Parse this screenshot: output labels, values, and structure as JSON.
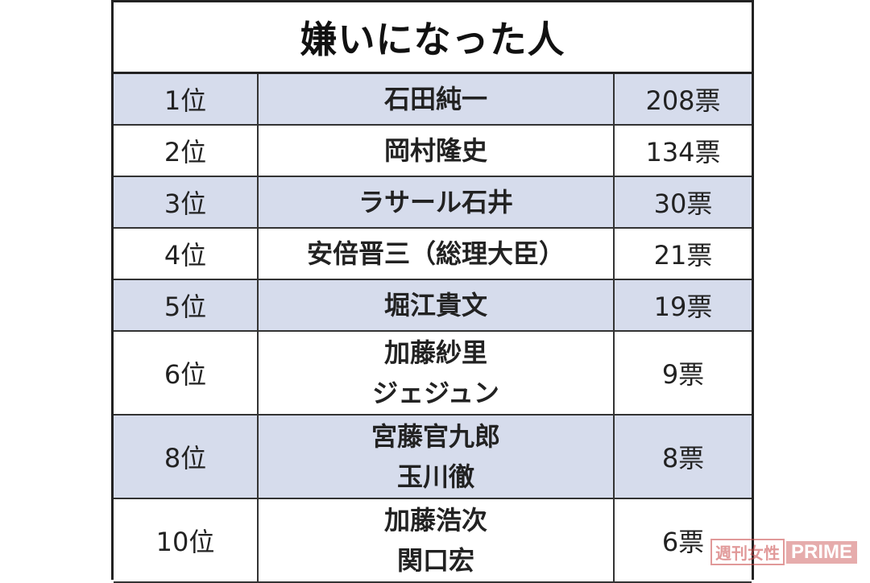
{
  "title": "嫌いになった人",
  "rows": [
    {
      "rank": "1位",
      "names": [
        "石田純一"
      ],
      "votes": "208票",
      "bg": "blue"
    },
    {
      "rank": "2位",
      "names": [
        "岡村隆史"
      ],
      "votes": "134票",
      "bg": "white"
    },
    {
      "rank": "3位",
      "names": [
        "ラサール石井"
      ],
      "votes": "30票",
      "bg": "blue"
    },
    {
      "rank": "4位",
      "names": [
        "安倍晋三（総理大臣）"
      ],
      "votes": "21票",
      "bg": "white"
    },
    {
      "rank": "5位",
      "names": [
        "堀江貴文"
      ],
      "votes": "19票",
      "bg": "blue"
    },
    {
      "rank": "6位",
      "names": [
        "加藤紗里",
        "ジェジュン"
      ],
      "votes": "9票",
      "bg": "white"
    },
    {
      "rank": "8位",
      "names": [
        "宮藤官九郎",
        "玉川徹"
      ],
      "votes": "8票",
      "bg": "blue"
    },
    {
      "rank": "10位",
      "names": [
        "加藤浩次",
        "関口宏"
      ],
      "votes": "6票",
      "bg": "white"
    }
  ],
  "watermark": {
    "box": "週刊女性",
    "prime": "PRIME"
  },
  "colors": {
    "row_blue": "#d6dcec",
    "border": "#222222"
  }
}
